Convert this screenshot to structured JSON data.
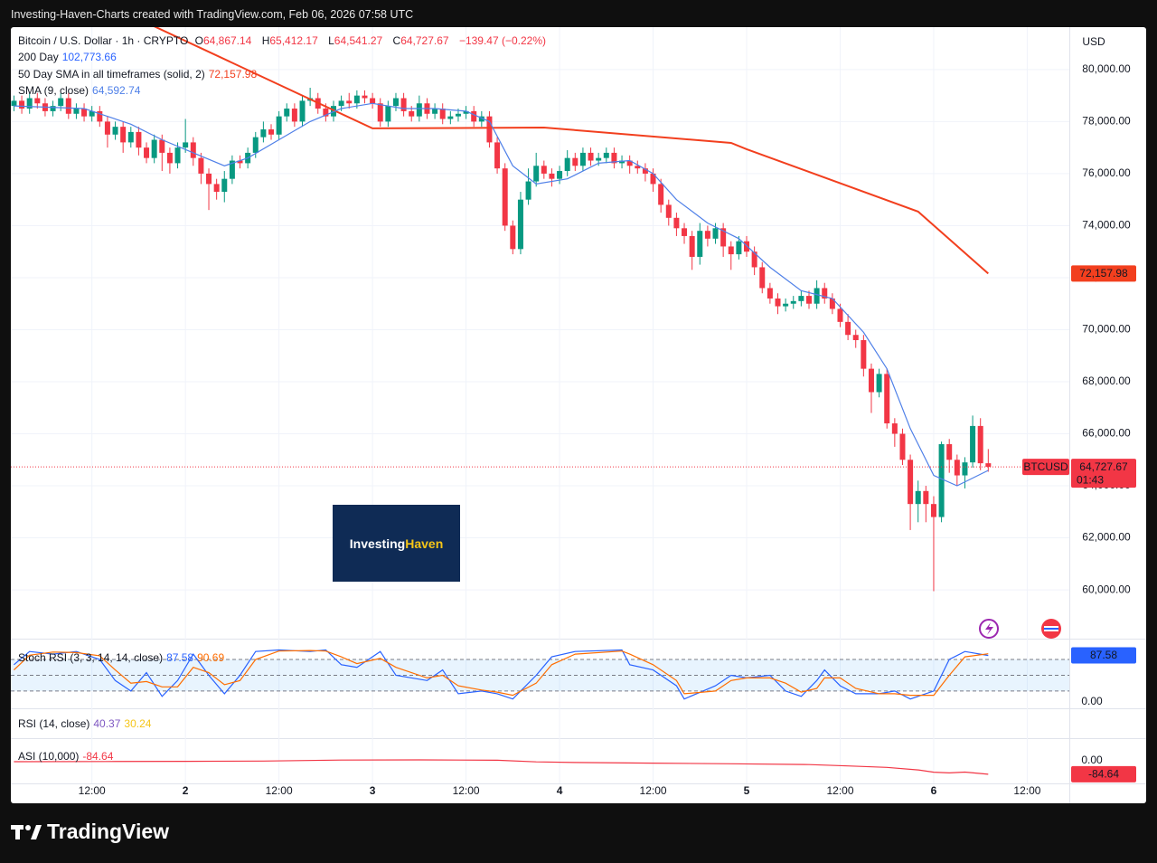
{
  "header": {
    "title": "Investing-Haven-Charts created with TradingView.com, Feb 06, 2026 07:58 UTC"
  },
  "footer": {
    "brand": "TradingView"
  },
  "logo": {
    "part1": "Investing",
    "part2": "Haven"
  },
  "chart_data": [
    {
      "type": "candlestick",
      "title": "Bitcoin / U.S. Dollar · 1h · CRYPTO",
      "ohlc_legend": [
        {
          "key": "O",
          "text": "64,867.14"
        },
        {
          "key": "H",
          "text": "65,412.17"
        },
        {
          "key": "L",
          "text": "64,541.27"
        },
        {
          "key": "C",
          "text": "64,727.67"
        }
      ],
      "change": "−139.47 (−0.22%)",
      "currency": "USD",
      "symbol": "BTCUSD",
      "countdown": "01:43",
      "up_color": "#089981",
      "down_color": "#f23645",
      "x": [
        -22,
        -21,
        -20,
        -19,
        -18,
        -17,
        -16,
        -15,
        -14,
        -13,
        -12,
        -11,
        -10,
        -9,
        -8,
        -7,
        -6,
        -5,
        -4,
        -3,
        -2,
        -1,
        0,
        1,
        2,
        3,
        4,
        5,
        6,
        7,
        8,
        9,
        10,
        11,
        12,
        13,
        14,
        15,
        16,
        17,
        18,
        19,
        20,
        21,
        22,
        23,
        24,
        25,
        26,
        27,
        28,
        29,
        30,
        31,
        32,
        33,
        34,
        35,
        36,
        37,
        38,
        39,
        40,
        41,
        42,
        43,
        44,
        45,
        46,
        47,
        48,
        49,
        50,
        51,
        52,
        53,
        54,
        55,
        56,
        57,
        58,
        59,
        60,
        61,
        62,
        63,
        64,
        65,
        66,
        67,
        68,
        69,
        70,
        71,
        72,
        73,
        74,
        75,
        76,
        77,
        78,
        79,
        80,
        81,
        82,
        83,
        84,
        85,
        86,
        87,
        88,
        89,
        90,
        91,
        92,
        93,
        94,
        95,
        96,
        97,
        98,
        99,
        100,
        101,
        102,
        103
      ],
      "open": [
        78600,
        78800,
        78500,
        78900,
        78700,
        78400,
        78600,
        78900,
        78300,
        78500,
        78200,
        78400,
        78000,
        77500,
        77800,
        77200,
        77600,
        77000,
        76600,
        77300,
        76800,
        76400,
        77000,
        77200,
        76600,
        76000,
        75600,
        75300,
        75800,
        76500,
        76400,
        76800,
        77400,
        77700,
        77500,
        78200,
        78500,
        78000,
        78800,
        78900,
        78500,
        78200,
        78600,
        78800,
        78700,
        79000,
        78900,
        78700,
        78000,
        78600,
        78900,
        78400,
        78200,
        78700,
        78300,
        78500,
        78100,
        78200,
        78300,
        78400,
        78000,
        78200,
        77200,
        76200,
        74000,
        73100,
        75000,
        75700,
        76300,
        76000,
        75800,
        76100,
        76600,
        76300,
        76800,
        76500,
        76600,
        76800,
        76400,
        76500,
        76300,
        76200,
        76000,
        75600,
        74800,
        74300,
        73900,
        73600,
        72800,
        73800,
        73500,
        73900,
        73200,
        72900,
        73400,
        73000,
        72400,
        71600,
        71200,
        70900,
        71000,
        71100,
        71300,
        71000,
        71600,
        71200,
        70800,
        70300,
        69800,
        69600,
        68500,
        67600,
        68300,
        66400,
        66000,
        65000,
        63300,
        63800,
        63300,
        62800,
        65600,
        65000,
        64400,
        64900,
        66300,
        64867.14
      ],
      "high": [
        79000,
        79000,
        79100,
        79100,
        78900,
        78800,
        79100,
        79100,
        78700,
        78700,
        78600,
        78600,
        78200,
        78000,
        78000,
        77800,
        77800,
        77200,
        77500,
        77500,
        77000,
        77200,
        78100,
        77400,
        76800,
        76200,
        75800,
        76100,
        76700,
        76700,
        77000,
        77600,
        78000,
        77900,
        78400,
        78700,
        78700,
        79000,
        79300,
        79100,
        78700,
        78800,
        79000,
        79100,
        79200,
        79200,
        79100,
        78900,
        78800,
        79100,
        79100,
        78600,
        79000,
        78900,
        78700,
        78700,
        78400,
        78500,
        78600,
        78600,
        78400,
        78400,
        77400,
        76400,
        74200,
        75300,
        76200,
        76800,
        76500,
        76200,
        76300,
        76900,
        76800,
        77000,
        77000,
        76800,
        77000,
        77000,
        76700,
        76700,
        76500,
        76400,
        76200,
        75800,
        75000,
        74500,
        74100,
        73800,
        74100,
        74000,
        74100,
        74100,
        73400,
        73600,
        73600,
        73200,
        72600,
        71800,
        71400,
        71200,
        71300,
        71500,
        71500,
        71900,
        71800,
        71400,
        71000,
        70600,
        70000,
        69800,
        68700,
        68500,
        68500,
        66600,
        66200,
        65200,
        64200,
        64000,
        63600,
        65700,
        65800,
        65200,
        65100,
        66700,
        66600,
        65412.17
      ],
      "low": [
        78400,
        78300,
        78300,
        78500,
        78200,
        78200,
        78400,
        78100,
        78100,
        78000,
        78000,
        77800,
        77000,
        77300,
        76800,
        77000,
        76700,
        76400,
        76400,
        76100,
        76000,
        76200,
        76800,
        76300,
        75600,
        74600,
        75000,
        74900,
        75600,
        76200,
        76200,
        76600,
        77200,
        77300,
        77300,
        78000,
        77800,
        77800,
        78600,
        78300,
        78000,
        78000,
        78400,
        78500,
        78500,
        78700,
        78500,
        77800,
        77800,
        78400,
        78200,
        78000,
        78000,
        78100,
        78100,
        77900,
        77900,
        78000,
        78100,
        77800,
        77800,
        77000,
        76000,
        73800,
        72900,
        72900,
        74800,
        75500,
        75800,
        75500,
        75600,
        75900,
        76100,
        76100,
        76300,
        76300,
        76400,
        76200,
        76200,
        76000,
        76000,
        75700,
        75300,
        74500,
        74000,
        73600,
        73300,
        72300,
        72500,
        73200,
        73300,
        72800,
        72300,
        72700,
        72800,
        72100,
        71400,
        71000,
        70600,
        70700,
        70800,
        70900,
        70800,
        70800,
        71000,
        70600,
        70100,
        69600,
        69300,
        68200,
        66800,
        67400,
        66200,
        65500,
        64800,
        62300,
        62600,
        62600,
        59950,
        62600,
        64500,
        64000,
        63900,
        64700,
        64600,
        64541.27
      ],
      "close": [
        78800,
        78500,
        78900,
        78700,
        78400,
        78600,
        78900,
        78300,
        78500,
        78200,
        78400,
        78000,
        77500,
        77800,
        77200,
        77600,
        77000,
        76600,
        77300,
        76800,
        76400,
        77000,
        77200,
        76600,
        76000,
        75600,
        75300,
        75800,
        76500,
        76400,
        76800,
        77400,
        77700,
        77500,
        78200,
        78500,
        78000,
        78800,
        78900,
        78500,
        78200,
        78600,
        78800,
        78700,
        79000,
        78900,
        78700,
        78000,
        78600,
        78900,
        78400,
        78200,
        78700,
        78300,
        78500,
        78100,
        78200,
        78300,
        78400,
        78000,
        78200,
        77200,
        76200,
        74000,
        73100,
        75000,
        75700,
        76300,
        76000,
        75800,
        76100,
        76600,
        76300,
        76800,
        76500,
        76600,
        76800,
        76400,
        76500,
        76300,
        76200,
        76000,
        75600,
        74800,
        74300,
        73900,
        73600,
        72800,
        73800,
        73500,
        73900,
        73200,
        72900,
        73400,
        73000,
        72400,
        71600,
        71200,
        70900,
        71000,
        71100,
        71300,
        71000,
        71600,
        71200,
        70800,
        70300,
        69800,
        69600,
        68500,
        67600,
        68300,
        66400,
        66000,
        65000,
        63300,
        63800,
        63300,
        62800,
        65600,
        65000,
        64400,
        64900,
        66300,
        64867.14,
        64727.67
      ],
      "xlim": [
        -22.4,
        113.4
      ],
      "xticks": [
        {
          "value": -12,
          "label": "12:00"
        },
        {
          "value": 0,
          "label": "2"
        },
        {
          "value": 12,
          "label": "12:00"
        },
        {
          "value": 24,
          "label": "3"
        },
        {
          "value": 36,
          "label": "12:00"
        },
        {
          "value": 48,
          "label": "4"
        },
        {
          "value": 60,
          "label": "12:00"
        },
        {
          "value": 72,
          "label": "5"
        },
        {
          "value": 84,
          "label": "12:00"
        },
        {
          "value": 96,
          "label": "6"
        },
        {
          "value": 108,
          "label": "12:00"
        }
      ],
      "ylim": [
        58160,
        81630
      ],
      "yticks": [
        {
          "value": 60000,
          "label": "60,000.00"
        },
        {
          "value": 62000,
          "label": "62,000.00"
        },
        {
          "value": 64000,
          "label": "64,000.00"
        },
        {
          "value": 66000,
          "label": "66,000.00"
        },
        {
          "value": 68000,
          "label": "68,000.00"
        },
        {
          "value": 70000,
          "label": "70,000.00"
        },
        {
          "value": 72000,
          "label": "72,000.00"
        },
        {
          "value": 74000,
          "label": "74,000.00"
        },
        {
          "value": 76000,
          "label": "76,000.00"
        },
        {
          "value": 78000,
          "label": "78,000.00"
        },
        {
          "value": 80000,
          "label": "80,000.00"
        }
      ],
      "grid": true,
      "series": [
        {
          "name": "200 Day",
          "color": "#2962ff",
          "label": "102,773.66"
        },
        {
          "name": "50 Day SMA in all timeframes (solid, 2)",
          "color": "#f23f1e",
          "label": "72,157.98",
          "x": [
            -5,
            24,
            46,
            70,
            72,
            94,
            103
          ],
          "values": [
            81800,
            77740,
            77770,
            77180,
            76940,
            74540,
            72157.98
          ]
        },
        {
          "name": "SMA (9, close)",
          "color": "#4f80e8",
          "label": "64,592.74",
          "x": [
            -22,
            -13,
            -7,
            -3,
            1,
            5,
            8,
            12,
            16,
            20,
            24,
            28,
            32,
            36,
            39,
            42,
            45,
            49,
            53,
            57,
            60,
            63,
            67,
            71,
            75,
            79,
            83,
            87,
            90,
            93,
            96,
            99,
            103
          ],
          "values": [
            78600,
            78500,
            77900,
            77300,
            76800,
            76300,
            76600,
            77300,
            78000,
            78500,
            78700,
            78500,
            78500,
            78400,
            78000,
            76300,
            75600,
            75800,
            76400,
            76500,
            76000,
            75000,
            74100,
            73500,
            72400,
            71500,
            71200,
            69900,
            68500,
            66200,
            64400,
            64000,
            64592.74
          ]
        }
      ]
    },
    {
      "type": "line",
      "title": "Stoch RSI (3, 3, 14, 14, close)",
      "ylim": [
        -11,
        116
      ],
      "yticks": [
        {
          "value": 0,
          "label": "0.00"
        }
      ],
      "band_lines": [
        20,
        50,
        80
      ],
      "x": [
        -22,
        -20,
        -17,
        -14,
        -11,
        -9,
        -7,
        -5,
        -3,
        -1,
        1,
        3,
        5,
        7,
        9,
        12,
        16,
        18,
        20,
        22,
        25,
        27,
        31,
        33,
        35,
        38,
        40,
        42,
        45,
        47,
        50,
        56,
        57,
        60,
        63,
        64,
        68,
        70,
        72,
        75,
        77,
        79,
        81,
        82,
        84,
        86,
        89,
        91,
        93,
        96,
        98,
        100,
        103
      ],
      "series": [
        {
          "color": "#2962ff",
          "label": "87.58",
          "values": [
            70,
            95,
            90,
            95,
            80,
            40,
            20,
            55,
            10,
            40,
            90,
            50,
            15,
            50,
            95,
            98,
            95,
            98,
            70,
            65,
            95,
            50,
            40,
            60,
            15,
            20,
            15,
            5,
            50,
            85,
            95,
            98,
            70,
            60,
            30,
            5,
            30,
            50,
            45,
            50,
            20,
            10,
            40,
            60,
            30,
            15,
            15,
            20,
            5,
            20,
            80,
            95,
            87.58
          ]
        },
        {
          "color": "#ff6d00",
          "label": "90.69",
          "values": [
            60,
            88,
            94,
            93,
            87,
            60,
            35,
            38,
            28,
            28,
            65,
            55,
            32,
            40,
            80,
            96,
            97,
            96,
            85,
            72,
            82,
            65,
            45,
            50,
            30,
            22,
            18,
            12,
            35,
            70,
            90,
            96,
            90,
            70,
            40,
            15,
            20,
            40,
            45,
            45,
            35,
            18,
            25,
            45,
            45,
            25,
            15,
            15,
            12,
            12,
            50,
            85,
            90.69
          ]
        }
      ]
    },
    {
      "type": "legend",
      "title": "RSI (14, close)",
      "series": [
        {
          "color": "#7e57c2",
          "label": "40.37"
        },
        {
          "color": "#f5c518",
          "label": "30.24"
        }
      ]
    },
    {
      "type": "line",
      "title": "ASI (10,000)",
      "ylim": [
        -141,
        127
      ],
      "yticks": [
        {
          "value": 0,
          "label": "0.00"
        }
      ],
      "x": [
        -22,
        -10,
        0,
        10,
        20,
        30,
        40,
        45,
        50,
        60,
        70,
        80,
        85,
        90,
        94,
        96,
        98,
        100,
        103
      ],
      "series": [
        {
          "color": "#f23645",
          "label": "-84.64",
          "values": [
            -7,
            -6,
            -5,
            -3,
            3,
            4,
            2,
            -8,
            -12,
            -16,
            -20,
            -25,
            -33,
            -42,
            -58,
            -72,
            -76,
            -71,
            -84.64
          ]
        }
      ]
    }
  ]
}
